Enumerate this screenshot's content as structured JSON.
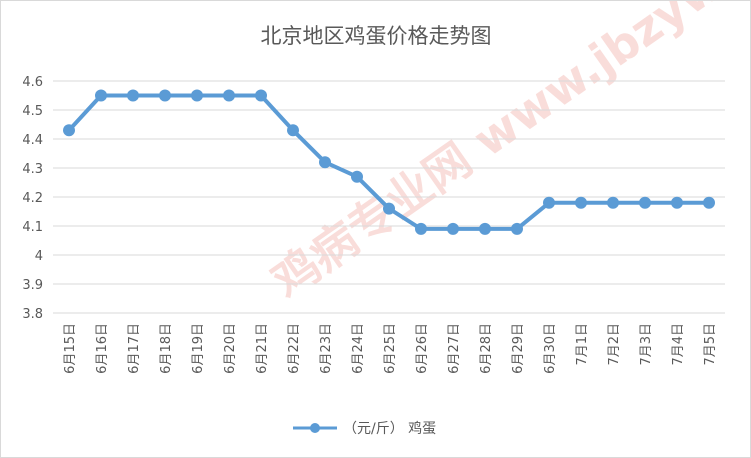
{
  "chart_data": {
    "type": "line",
    "title": "北京地区鸡蛋价格走势图",
    "categories": [
      "6月15日",
      "6月16日",
      "6月17日",
      "6月18日",
      "6月19日",
      "6月20日",
      "6月21日",
      "6月22日",
      "6月23日",
      "6月24日",
      "6月25日",
      "6月26日",
      "6月27日",
      "6月28日",
      "6月29日",
      "6月30日",
      "7月1日",
      "7月2日",
      "7月3日",
      "7月4日",
      "7月5日"
    ],
    "series": [
      {
        "name": "（元/斤） 鸡蛋",
        "color": "#5b9bd5",
        "values": [
          4.43,
          4.55,
          4.55,
          4.55,
          4.55,
          4.55,
          4.55,
          4.43,
          4.32,
          4.27,
          4.16,
          4.09,
          4.09,
          4.09,
          4.09,
          4.18,
          4.18,
          4.18,
          4.18,
          4.18,
          4.18
        ]
      }
    ],
    "ylim": [
      3.8,
      4.6
    ],
    "yticks": [
      "3.8",
      "3.9",
      "4",
      "4.1",
      "4.2",
      "4.3",
      "4.4",
      "4.5",
      "4.6"
    ],
    "grid": true,
    "legend": "bottom",
    "watermark": "鸡病专业网 www.jbzyw.com"
  }
}
